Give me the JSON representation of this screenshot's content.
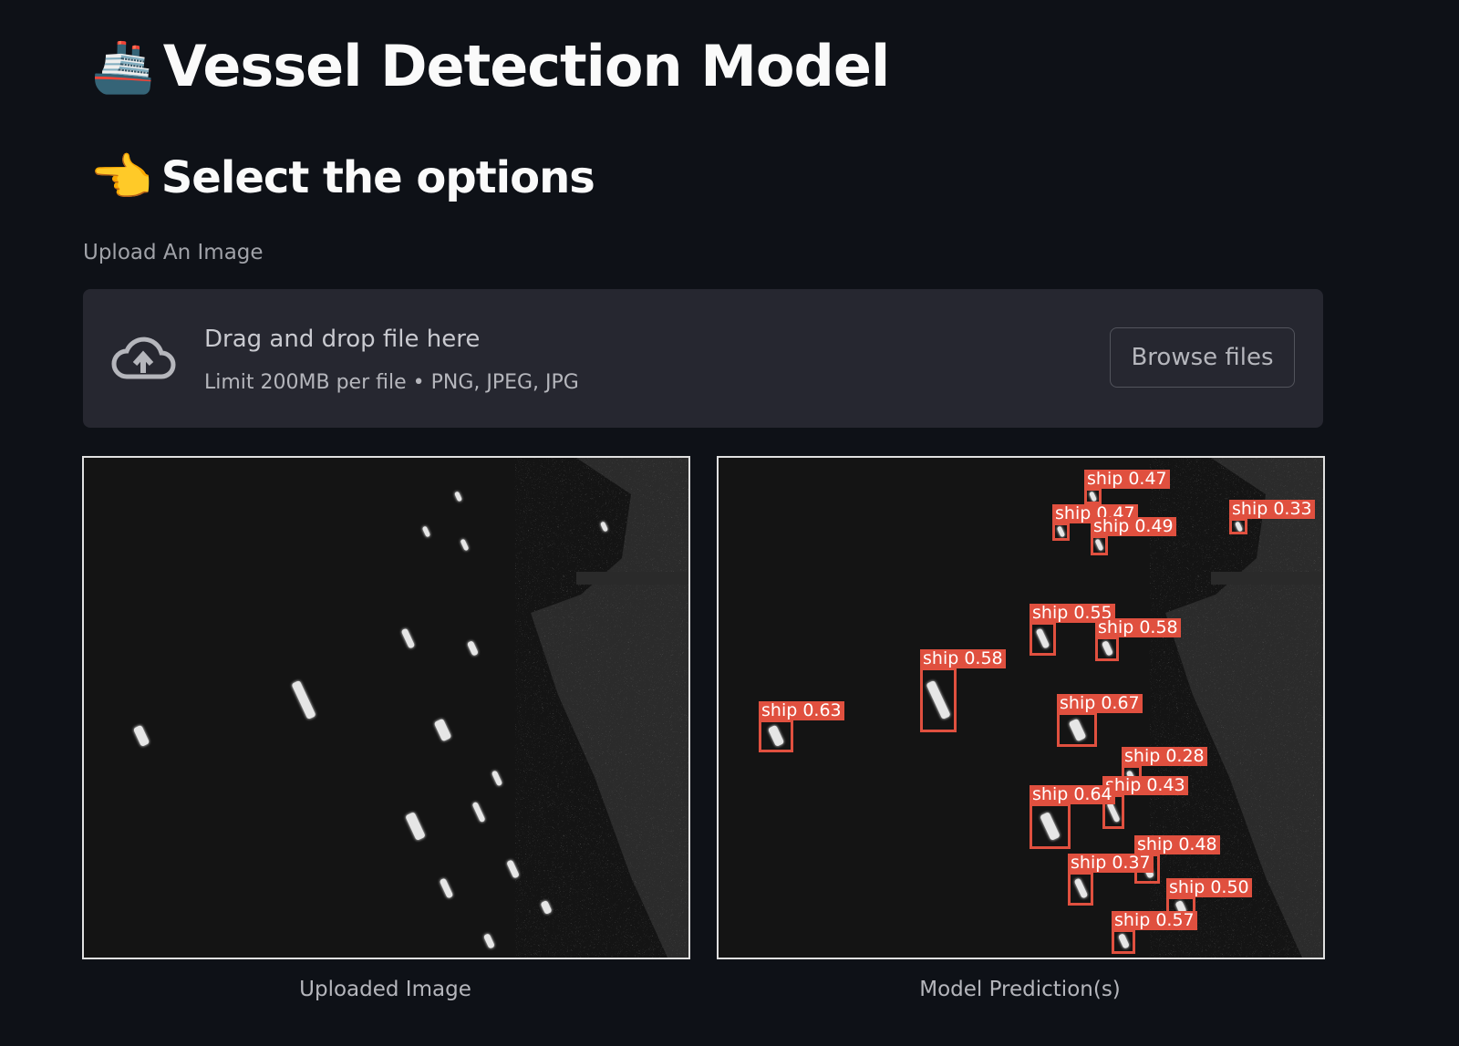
{
  "header": {
    "title": "Vessel Detection Model",
    "title_icon": "ship-emoji",
    "subtitle": "Select the options",
    "subtitle_icon": "pointing-hand-emoji"
  },
  "uploader": {
    "label": "Upload An Image",
    "drop_text": "Drag and drop file here",
    "limit_text": "Limit 200MB per file • PNG, JPEG, JPG",
    "browse_label": "Browse files",
    "icon": "cloud-upload-icon"
  },
  "images": {
    "uploaded_caption": "Uploaded Image",
    "prediction_caption": "Model Prediction(s)"
  },
  "colors": {
    "background": "#0e1117",
    "dropzone": "#262730",
    "box": "#e0503f"
  },
  "detections": [
    "ship 0.47",
    "ship 0.47",
    "ship 0.49",
    "ship 0.33",
    "ship 0.55",
    "ship 0.58",
    "ship 0.58",
    "ship 0.63",
    "ship 0.67",
    "ship 0.28",
    "ship 0.43",
    "ship 0.64",
    "ship 0.48",
    "ship 0.37",
    "ship 0.50",
    "ship 0.57"
  ]
}
